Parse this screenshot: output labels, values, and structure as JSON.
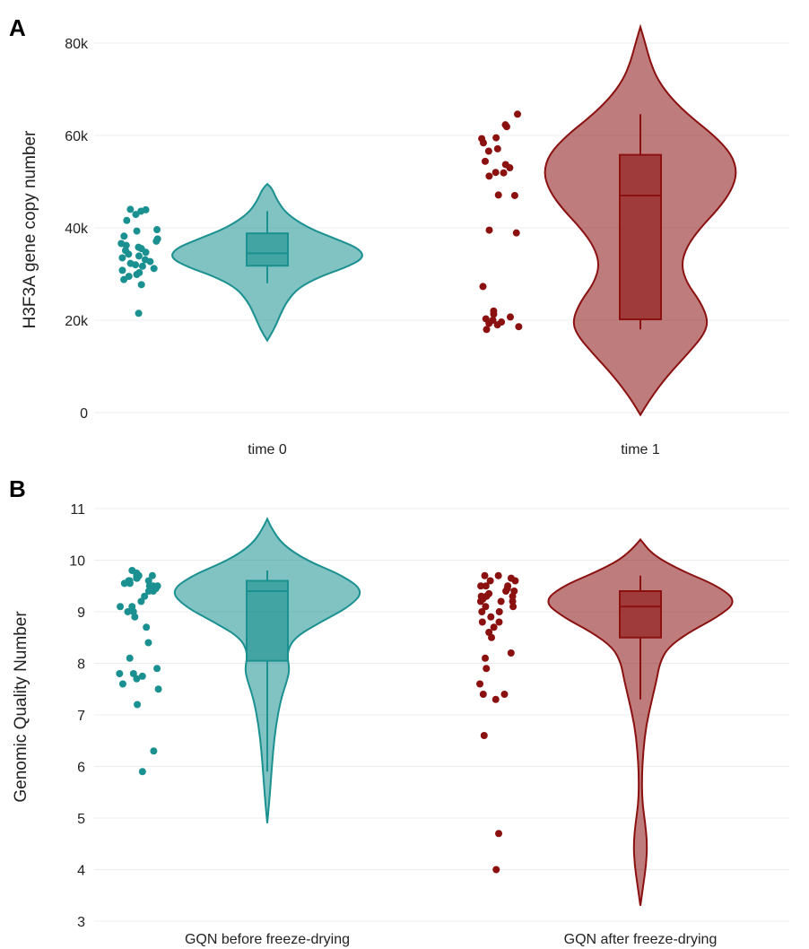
{
  "colors": {
    "teal": "#1a9090",
    "red": "#8b1010"
  },
  "chart_data": [
    {
      "type": "violin",
      "panel_label": "A",
      "ylabel": "H3F3A gene copy number",
      "ylim": [
        0,
        80000
      ],
      "yticks": [
        0,
        20000,
        40000,
        60000,
        80000
      ],
      "ytick_labels": [
        "0",
        "20k",
        "40k",
        "60k",
        "80k"
      ],
      "categories": [
        "time 0",
        "time 1"
      ],
      "groups": [
        {
          "category": "time 0",
          "color": "#1a9090",
          "points": [
            21500,
            27700,
            28800,
            29500,
            29900,
            30300,
            30800,
            31200,
            31700,
            32000,
            32300,
            32700,
            33100,
            33500,
            33900,
            34300,
            34700,
            35100,
            35500,
            35800,
            36200,
            36600,
            37100,
            37600,
            38200,
            39300,
            39600,
            41600,
            42900,
            43600,
            43900,
            44000
          ],
          "box": {
            "min": 28000,
            "q1": 31800,
            "median": 34500,
            "q3": 38800,
            "max": 43600
          },
          "violin_range": [
            15600,
            49500
          ],
          "density_shape": [
            [
              15600,
              0
            ],
            [
              18000,
              0.07
            ],
            [
              21000,
              0.13
            ],
            [
              24000,
              0.2
            ],
            [
              27000,
              0.32
            ],
            [
              29500,
              0.55
            ],
            [
              31500,
              0.82
            ],
            [
              33500,
              1.0
            ],
            [
              35500,
              0.95
            ],
            [
              37500,
              0.72
            ],
            [
              40000,
              0.42
            ],
            [
              43000,
              0.2
            ],
            [
              46000,
              0.1
            ],
            [
              48500,
              0.05
            ],
            [
              49500,
              0
            ]
          ]
        },
        {
          "category": "time 1",
          "color": "#8b1010",
          "points": [
            18000,
            18600,
            19000,
            19300,
            19600,
            20000,
            20300,
            20700,
            21300,
            22000,
            27300,
            38900,
            39500,
            47000,
            47100,
            51200,
            51900,
            52000,
            53000,
            53700,
            54400,
            56600,
            57100,
            58400,
            59300,
            59500,
            61900,
            62300,
            64600
          ],
          "box": {
            "min": 18000,
            "q1": 20200,
            "median": 47000,
            "q3": 55800,
            "max": 64600
          },
          "violin_range": [
            -500,
            83500
          ],
          "density_shape": [
            [
              -500,
              0
            ],
            [
              3000,
              0.1
            ],
            [
              8000,
              0.28
            ],
            [
              13000,
              0.5
            ],
            [
              17000,
              0.66
            ],
            [
              20000,
              0.7
            ],
            [
              24000,
              0.62
            ],
            [
              28000,
              0.48
            ],
            [
              32000,
              0.42
            ],
            [
              36000,
              0.48
            ],
            [
              40000,
              0.62
            ],
            [
              44000,
              0.8
            ],
            [
              48000,
              0.94
            ],
            [
              52000,
              1.0
            ],
            [
              56000,
              0.94
            ],
            [
              60000,
              0.76
            ],
            [
              64000,
              0.52
            ],
            [
              68000,
              0.32
            ],
            [
              72000,
              0.18
            ],
            [
              76000,
              0.1
            ],
            [
              80000,
              0.05
            ],
            [
              83500,
              0
            ]
          ]
        }
      ]
    },
    {
      "type": "violin",
      "panel_label": "B",
      "ylabel": "Genomic Quality Number",
      "ylim": [
        3,
        11
      ],
      "yticks": [
        3,
        4,
        5,
        6,
        7,
        8,
        9,
        10,
        11
      ],
      "ytick_labels": [
        "3",
        "4",
        "5",
        "6",
        "7",
        "8",
        "9",
        "10",
        "11"
      ],
      "categories": [
        "GQN before freeze-drying",
        "GQN after freeze-drying"
      ],
      "groups": [
        {
          "category": "GQN before freeze-drying",
          "color": "#1a9090",
          "points": [
            9.8,
            9.75,
            9.7,
            9.7,
            9.7,
            9.65,
            9.65,
            9.6,
            9.6,
            9.6,
            9.55,
            9.55,
            9.5,
            9.5,
            9.5,
            9.45,
            9.4,
            9.4,
            9.3,
            9.2,
            9.1,
            9.1,
            9.0,
            9.0,
            8.9,
            8.7,
            8.4,
            8.1,
            7.9,
            7.8,
            7.8,
            7.75,
            7.7,
            7.6,
            7.5,
            7.2,
            6.3,
            5.9
          ],
          "box": {
            "min": 5.9,
            "q1": 8.05,
            "median": 9.4,
            "q3": 9.6,
            "max": 9.8
          },
          "violin_range": [
            4.9,
            10.8
          ],
          "density_shape": [
            [
              4.9,
              0
            ],
            [
              5.3,
              0.02
            ],
            [
              5.8,
              0.04
            ],
            [
              6.3,
              0.06
            ],
            [
              6.8,
              0.09
            ],
            [
              7.3,
              0.14
            ],
            [
              7.7,
              0.21
            ],
            [
              7.9,
              0.23
            ],
            [
              8.2,
              0.2
            ],
            [
              8.5,
              0.28
            ],
            [
              8.8,
              0.55
            ],
            [
              9.1,
              0.85
            ],
            [
              9.4,
              1.0
            ],
            [
              9.7,
              0.78
            ],
            [
              10.0,
              0.4
            ],
            [
              10.3,
              0.16
            ],
            [
              10.6,
              0.05
            ],
            [
              10.8,
              0
            ]
          ]
        },
        {
          "category": "GQN after freeze-drying",
          "color": "#8b1010",
          "points": [
            9.7,
            9.7,
            9.65,
            9.6,
            9.6,
            9.5,
            9.5,
            9.5,
            9.45,
            9.4,
            9.4,
            9.35,
            9.3,
            9.3,
            9.3,
            9.25,
            9.2,
            9.2,
            9.2,
            9.1,
            9.1,
            9.0,
            9.0,
            8.9,
            8.8,
            8.8,
            8.7,
            8.6,
            8.5,
            8.2,
            8.1,
            7.9,
            7.6,
            7.4,
            7.4,
            7.3,
            6.6,
            4.7,
            4.0
          ],
          "box": {
            "min": 7.3,
            "q1": 8.5,
            "median": 9.1,
            "q3": 9.4,
            "max": 9.7
          },
          "violin_range": [
            3.3,
            10.4
          ],
          "density_shape": [
            [
              3.3,
              0
            ],
            [
              3.7,
              0.03
            ],
            [
              4.1,
              0.06
            ],
            [
              4.5,
              0.07
            ],
            [
              4.9,
              0.05
            ],
            [
              5.3,
              0.02
            ],
            [
              5.8,
              0.015
            ],
            [
              6.3,
              0.03
            ],
            [
              6.8,
              0.06
            ],
            [
              7.3,
              0.12
            ],
            [
              7.7,
              0.17
            ],
            [
              8.0,
              0.2
            ],
            [
              8.3,
              0.28
            ],
            [
              8.6,
              0.5
            ],
            [
              8.9,
              0.8
            ],
            [
              9.2,
              1.0
            ],
            [
              9.5,
              0.8
            ],
            [
              9.8,
              0.42
            ],
            [
              10.1,
              0.13
            ],
            [
              10.4,
              0
            ]
          ]
        }
      ]
    }
  ]
}
